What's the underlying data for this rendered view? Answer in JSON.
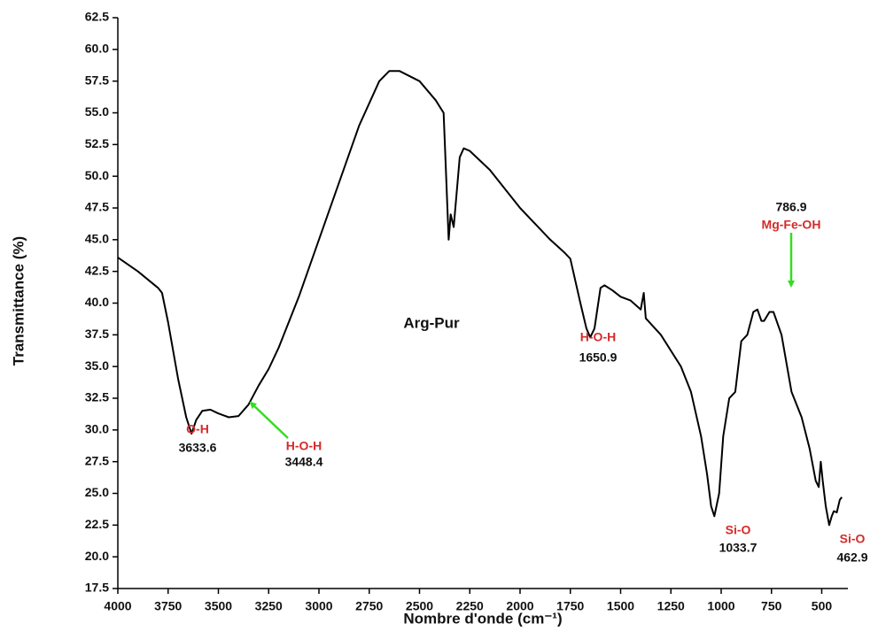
{
  "chart_data": {
    "type": "line",
    "x_label": "Nombre d'onde (cm⁻¹)",
    "y_label": "Transmittance (%)",
    "xlim": [
      4000,
      370
    ],
    "ylim": [
      17.5,
      62.5
    ],
    "xticks": [
      4000,
      3750,
      3500,
      3250,
      3000,
      2750,
      2500,
      2250,
      2000,
      1750,
      1500,
      1250,
      1000,
      750,
      500
    ],
    "yticks": [
      17.5,
      {
        "value": 20,
        "label": "20.0"
      },
      22.5,
      {
        "value": 25,
        "label": "25.0"
      },
      27.5,
      {
        "value": 30,
        "label": "30.0"
      },
      32.5,
      {
        "value": 35,
        "label": "35.0"
      },
      37.5,
      {
        "value": 40,
        "label": "40.0"
      },
      42.5,
      {
        "value": 45,
        "label": "45.0"
      },
      47.5,
      {
        "value": 50,
        "label": "50.0"
      },
      52.5,
      {
        "value": 55,
        "label": "55.0"
      },
      57.5,
      {
        "value": 60,
        "label": "60.0"
      },
      62.5
    ],
    "x": [
      4000,
      3900,
      3800,
      3780,
      3750,
      3700,
      3660,
      3633.6,
      3610,
      3580,
      3540,
      3500,
      3448.4,
      3400,
      3350,
      3300,
      3250,
      3200,
      3100,
      3000,
      2900,
      2800,
      2700,
      2650,
      2600,
      2500,
      2420,
      2380,
      2370,
      2355,
      2345,
      2330,
      2300,
      2280,
      2250,
      2150,
      2000,
      1850,
      1780,
      1750,
      1700,
      1670,
      1650.9,
      1630,
      1600,
      1580,
      1540,
      1500,
      1450,
      1400,
      1385,
      1375,
      1300,
      1200,
      1150,
      1100,
      1070,
      1050,
      1033.7,
      1010,
      990,
      960,
      930,
      900,
      870,
      840,
      820,
      800,
      786.9,
      760,
      740,
      700,
      650,
      600,
      560,
      530,
      515,
      505,
      495,
      480,
      462.9,
      450,
      440,
      425,
      410,
      400
    ],
    "series": [
      {
        "name": "Arg-Pur",
        "color": "#000000",
        "values": [
          43.6,
          42.5,
          41.2,
          40.8,
          38.5,
          34,
          31,
          29.7,
          30.8,
          31.5,
          31.6,
          31.3,
          31.0,
          31.1,
          32,
          33.5,
          34.8,
          36.5,
          40.5,
          45,
          49.5,
          54,
          57.5,
          58.3,
          58.3,
          57.5,
          56,
          55,
          51,
          45,
          47,
          46,
          51.5,
          52.2,
          52,
          50.5,
          47.5,
          45,
          44,
          43.5,
          40,
          38,
          37.3,
          38,
          41.2,
          41.4,
          41,
          40.5,
          40.2,
          39.5,
          40.8,
          38.8,
          37.5,
          35,
          33,
          29.5,
          26.5,
          24,
          23.2,
          25,
          29.5,
          32.5,
          33,
          37,
          37.5,
          39.3,
          39.5,
          38.6,
          38.6,
          39.3,
          39.3,
          37.5,
          33,
          31,
          28.5,
          26,
          25.5,
          27.5,
          26,
          24,
          22.5,
          23.2,
          23.6,
          23.5,
          24.5,
          24.7
        ]
      }
    ],
    "annotations": [
      {
        "label": "O-H",
        "x": 3633.6
      },
      {
        "label": "H-O-H",
        "x": 3448.4,
        "arrow": true
      },
      {
        "label": "H-O-H",
        "x": 1650.9
      },
      {
        "label": "Si-O",
        "x": 1033.7
      },
      {
        "label": "Mg-Fe-OH",
        "x": 786.9,
        "arrow": true
      },
      {
        "label": "Si-O",
        "x": 462.9
      }
    ],
    "label_color": "#d42a2a",
    "arrow_color": "#33dd22"
  }
}
